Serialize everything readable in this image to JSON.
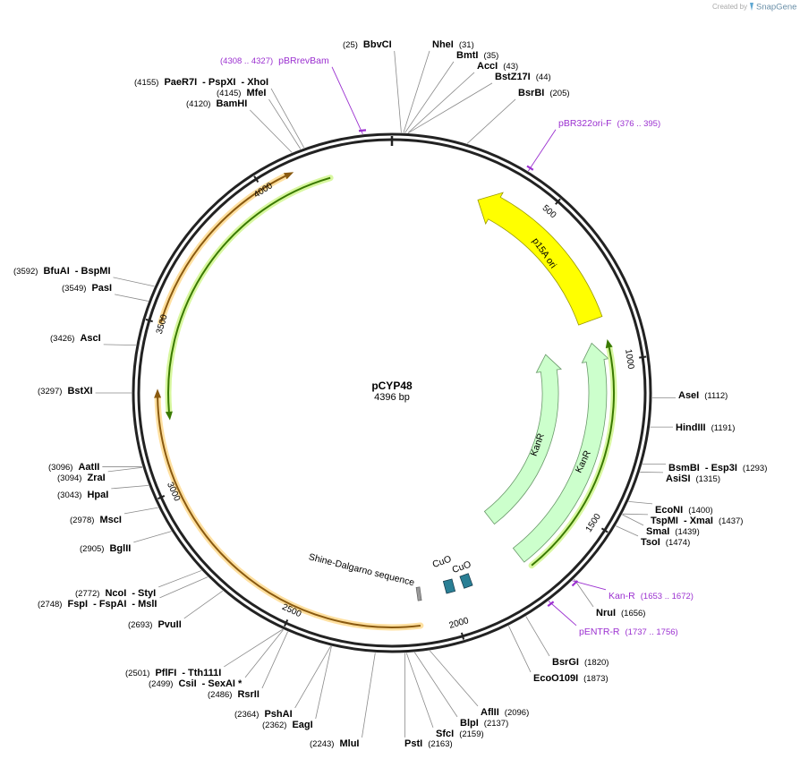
{
  "header": {
    "credit": "Created by",
    "brand": "SnapGene"
  },
  "plasmid": {
    "name": "pCYP48",
    "length": "4396 bp",
    "ticks": [
      500,
      1000,
      1500,
      2000,
      2500,
      3000,
      3500,
      4000
    ]
  },
  "enzymes": [
    {
      "names": [
        "BbvCI"
      ],
      "position": "(25)"
    },
    {
      "names": [
        "NheI"
      ],
      "position": "(31)"
    },
    {
      "names": [
        "BmtI"
      ],
      "position": "(35)"
    },
    {
      "names": [
        "AccI"
      ],
      "position": "(43)"
    },
    {
      "names": [
        "BstZ17I"
      ],
      "position": "(44)"
    },
    {
      "names": [
        "BsrBI"
      ],
      "position": "(205)"
    },
    {
      "names": [
        "AseI"
      ],
      "position": "(1112)"
    },
    {
      "names": [
        "HindIII"
      ],
      "position": "(1191)"
    },
    {
      "names": [
        "BsmBI",
        "- Esp3I"
      ],
      "position": "(1293)"
    },
    {
      "names": [
        "AsiSI"
      ],
      "position": "(1315)"
    },
    {
      "names": [
        "EcoNI"
      ],
      "position": "(1400)"
    },
    {
      "names": [
        "TspMI",
        "- XmaI"
      ],
      "position": "(1437)"
    },
    {
      "names": [
        "SmaI"
      ],
      "position": "(1439)"
    },
    {
      "names": [
        "TsoI"
      ],
      "position": "(1474)"
    },
    {
      "names": [
        "NruI"
      ],
      "position": "(1656)"
    },
    {
      "names": [
        "BsrGI"
      ],
      "position": "(1820)"
    },
    {
      "names": [
        "EcoO109I"
      ],
      "position": "(1873)"
    },
    {
      "names": [
        "AflII"
      ],
      "position": "(2096)"
    },
    {
      "names": [
        "BlpI"
      ],
      "position": "(2137)"
    },
    {
      "names": [
        "SfcI"
      ],
      "position": "(2159)"
    },
    {
      "names": [
        "PstI"
      ],
      "position": "(2163)"
    },
    {
      "names": [
        "MluI"
      ],
      "position": "(2243)"
    },
    {
      "names": [
        "EagI"
      ],
      "position": "(2362)"
    },
    {
      "names": [
        "PshAI"
      ],
      "position": "(2364)"
    },
    {
      "names": [
        "RsrII"
      ],
      "position": "(2486)"
    },
    {
      "names": [
        "CsiI",
        "- SexAI *"
      ],
      "position": "(2499)"
    },
    {
      "names": [
        "PflFI",
        "- Tth111I"
      ],
      "position": "(2501)"
    },
    {
      "names": [
        "PvuII"
      ],
      "position": "(2693)"
    },
    {
      "names": [
        "FspI",
        "- FspAI",
        "- MslI"
      ],
      "position": "(2748)"
    },
    {
      "names": [
        "NcoI",
        "- StyI"
      ],
      "position": "(2772)"
    },
    {
      "names": [
        "BglII"
      ],
      "position": "(2905)"
    },
    {
      "names": [
        "MscI"
      ],
      "position": "(2978)"
    },
    {
      "names": [
        "HpaI"
      ],
      "position": "(3043)"
    },
    {
      "names": [
        "ZraI"
      ],
      "position": "(3094)"
    },
    {
      "names": [
        "AatII"
      ],
      "position": "(3096)"
    },
    {
      "names": [
        "BstXI"
      ],
      "position": "(3297)"
    },
    {
      "names": [
        "AscI"
      ],
      "position": "(3426)"
    },
    {
      "names": [
        "PasI"
      ],
      "position": "(3549)"
    },
    {
      "names": [
        "BfuAI",
        "- BspMI"
      ],
      "position": "(3592)"
    },
    {
      "names": [
        "BamHI"
      ],
      "position": "(4120)"
    },
    {
      "names": [
        "MfeI"
      ],
      "position": "(4145)"
    },
    {
      "names": [
        "PaeR7I",
        "- PspXI",
        "- XhoI"
      ],
      "position": "(4155)"
    }
  ],
  "primers": [
    {
      "name": "pBRrevBam",
      "range": "(4308 .. 4327)"
    },
    {
      "name": "pBR322ori-F",
      "range": "(376 .. 395)"
    },
    {
      "name": "Kan-R",
      "range": "(1653 .. 1672)"
    },
    {
      "name": "pENTR-R",
      "range": "(1737 .. 1756)"
    }
  ],
  "features": [
    {
      "label": "p15A ori"
    },
    {
      "label": "KanR"
    },
    {
      "label": "KanR"
    }
  ],
  "sites": [
    {
      "label": "CuO"
    },
    {
      "label": "CuO"
    },
    {
      "label": "Shine-Dalgarno sequence"
    }
  ]
}
